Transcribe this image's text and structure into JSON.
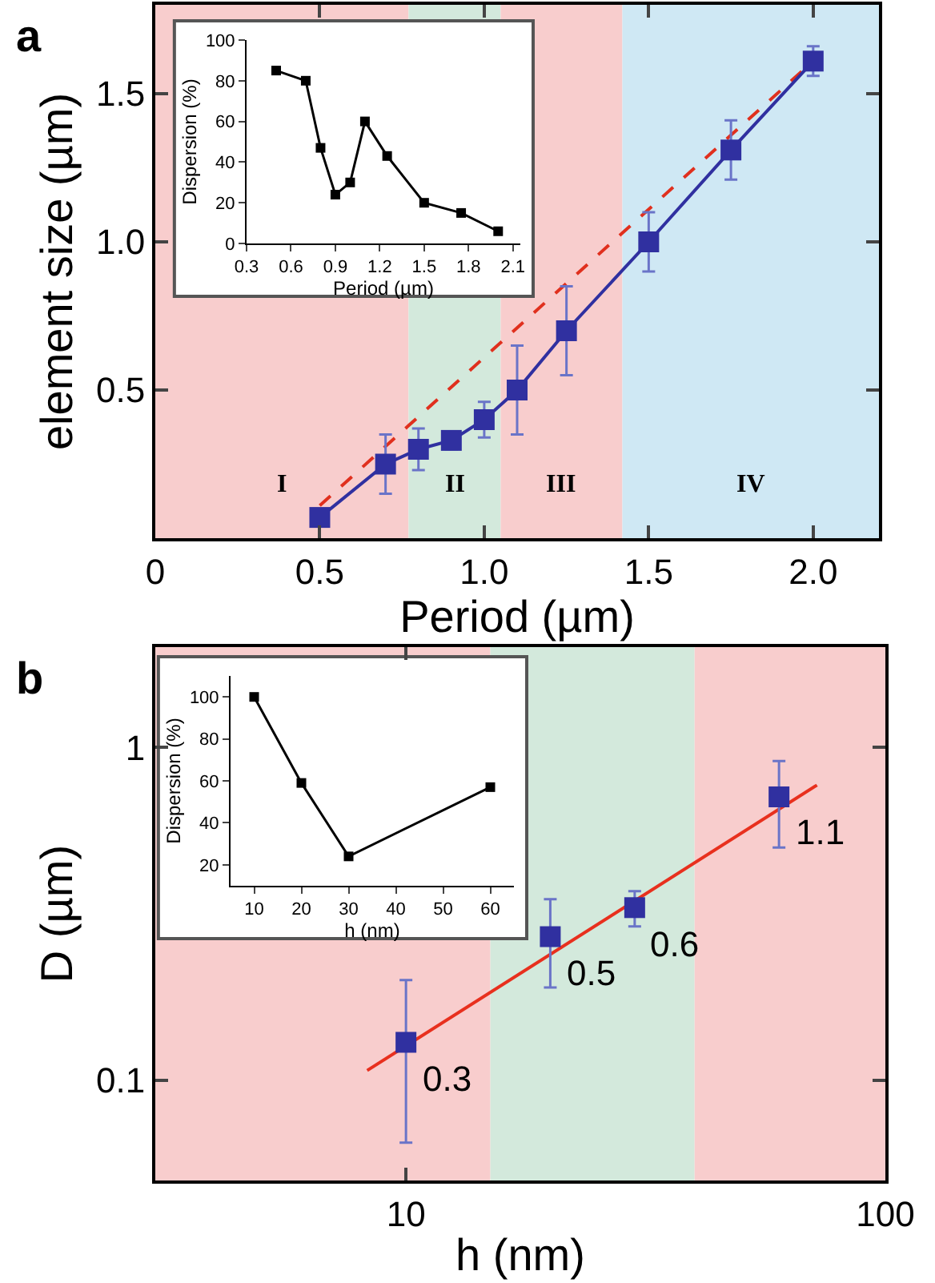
{
  "chart_data": [
    {
      "type": "line",
      "title": "a",
      "xlabel": "Period (µm)",
      "ylabel": "element size (µm)",
      "xlim": [
        0,
        2.2
      ],
      "xticks": [
        0,
        {
          "value": 0.5,
          "label": "0.5"
        },
        {
          "value": 1.0,
          "label": "1.0"
        },
        {
          "value": 1.5,
          "label": "1.5"
        },
        {
          "value": 2.0,
          "label": "2.0"
        }
      ],
      "ylim": [
        0,
        1.8
      ],
      "yticks": [
        {
          "value": 0.5,
          "label": "0.5"
        },
        {
          "value": 1.0,
          "label": "1.0"
        },
        {
          "value": 1.5,
          "label": "1.5"
        }
      ],
      "grid": false,
      "bands": [
        {
          "axis": "x",
          "from": 0,
          "to": 0.77,
          "label": "I",
          "color": "#f8cdcd"
        },
        {
          "axis": "x",
          "from": 0.77,
          "to": 1.05,
          "label": "II",
          "color": "#d3e9dc"
        },
        {
          "axis": "x",
          "from": 1.05,
          "to": 1.42,
          "label": "III",
          "color": "#f8cdcd"
        },
        {
          "axis": "x",
          "from": 1.42,
          "to": 2.2,
          "label": "IV",
          "color": "#cfe8f4"
        }
      ],
      "series": [
        {
          "color": "#e0301e",
          "line_style": "dashed",
          "marker": "none",
          "x": [
            0.5,
            2.0
          ],
          "values": [
            0.11,
            1.61
          ]
        },
        {
          "color": "#3030a0",
          "line_style": "solid",
          "marker": "square",
          "x": [
            0.5,
            0.7,
            0.8,
            0.9,
            1.0,
            1.1,
            1.25,
            1.5,
            1.75,
            2.0
          ],
          "values": [
            0.07,
            0.25,
            0.3,
            0.33,
            0.4,
            0.5,
            0.7,
            1.0,
            1.31,
            1.61
          ],
          "errors": [
            null,
            0.1,
            0.07,
            0.03,
            0.06,
            0.15,
            0.15,
            0.1,
            0.1,
            0.05
          ]
        }
      ]
    },
    {
      "type": "line",
      "xlabel": "Period (µm)",
      "ylabel": "Dispersion (%)",
      "xlim": [
        0.3,
        2.15
      ],
      "xticks": [
        {
          "value": 0.3,
          "label": "0.3"
        },
        {
          "value": 0.6,
          "label": "0.6"
        },
        {
          "value": 0.9,
          "label": "0.9"
        },
        {
          "value": 1.2,
          "label": "1.2"
        },
        {
          "value": 1.5,
          "label": "1.5"
        },
        {
          "value": 1.8,
          "label": "1.8"
        },
        {
          "value": 2.1,
          "label": "2.1"
        }
      ],
      "ylim": [
        0,
        100
      ],
      "yticks": [
        0,
        20,
        40,
        60,
        80,
        100
      ],
      "grid": false,
      "series": [
        {
          "color": "#000000",
          "line_style": "solid",
          "marker": "square",
          "x": [
            0.5,
            0.7,
            0.8,
            0.9,
            1.0,
            1.1,
            1.25,
            1.5,
            1.75,
            2.0
          ],
          "values": [
            85,
            80,
            47,
            24,
            30,
            60,
            43,
            20,
            15,
            6
          ]
        }
      ]
    },
    {
      "type": "scatter",
      "title": "b",
      "xlabel": "h (nm)",
      "ylabel": "D (µm)",
      "log": "xy",
      "xlim": [
        3,
        100
      ],
      "xticks": [
        10,
        100
      ],
      "ylim": [
        0.05,
        2
      ],
      "yticks": [
        0.1,
        1
      ],
      "grid": false,
      "bands": [
        {
          "axis": "x",
          "from": 3,
          "to": 15,
          "color": "#f8cdcd"
        },
        {
          "axis": "x",
          "from": 15,
          "to": 40,
          "color": "#d3e9dc"
        },
        {
          "axis": "x",
          "from": 40,
          "to": 100,
          "color": "#f8cdcd"
        }
      ],
      "series": [
        {
          "type": "line",
          "color": "#e8301e",
          "line_style": "solid",
          "marker": "none",
          "x": [
            8.3,
            72
          ],
          "values": [
            0.107,
            0.77
          ]
        },
        {
          "color": "#3030a0",
          "marker": "square",
          "x": [
            10,
            20,
            30,
            60
          ],
          "values": [
            0.13,
            0.27,
            0.33,
            0.71
          ],
          "errors": [
            [
              0.065,
              0.2
            ],
            [
              0.19,
              0.35
            ],
            [
              0.29,
              0.37
            ],
            [
              0.5,
              0.91
            ]
          ]
        }
      ],
      "annotations": [
        {
          "text": "0.3",
          "x": 10,
          "y": 0.13
        },
        {
          "text": "0.5",
          "x": 20,
          "y": 0.27
        },
        {
          "text": "0.6",
          "x": 30,
          "y": 0.33
        },
        {
          "text": "1.1",
          "x": 60,
          "y": 0.71
        }
      ]
    },
    {
      "type": "line",
      "xlabel": "h (nm)",
      "ylabel": "Dispersion (%)",
      "xlim": [
        5,
        65
      ],
      "xticks": [
        10,
        20,
        30,
        40,
        50,
        60
      ],
      "ylim": [
        10,
        110
      ],
      "yticks": [
        20,
        40,
        60,
        80,
        100
      ],
      "grid": false,
      "series": [
        {
          "color": "#000000",
          "line_style": "solid",
          "marker": "square",
          "x": [
            10,
            20,
            30,
            60
          ],
          "values": [
            100,
            59,
            24,
            57
          ]
        }
      ]
    }
  ]
}
